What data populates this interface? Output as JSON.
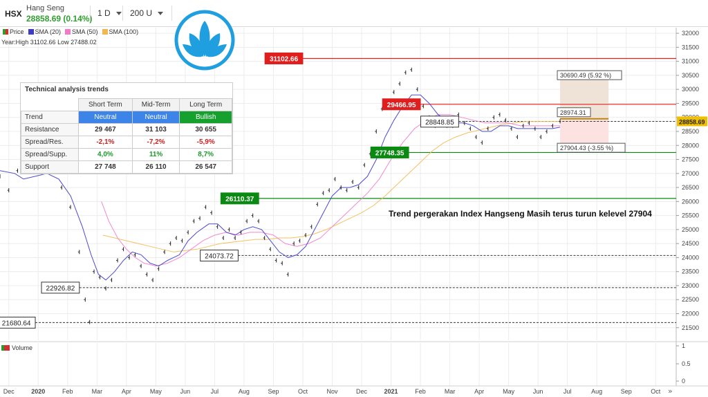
{
  "header": {
    "symbol": "HSX",
    "name": "Hang Seng",
    "price": "28858.69 (0.14%)",
    "interval": "1 D",
    "bars": "200 U"
  },
  "legend": {
    "items": [
      {
        "label": "Price",
        "color": "#2e9e2e"
      },
      {
        "label": "SMA (20)",
        "color": "#3c3cc8"
      },
      {
        "label": "SMA (50)",
        "color": "#f07ac8"
      },
      {
        "label": "SMA (100)",
        "color": "#f0b850"
      }
    ],
    "year_info": "Year:High 31102.66 Low 27488.02"
  },
  "technical_table": {
    "title": "Technical analysis trends",
    "columns": [
      "Short Term",
      "Mid-Term",
      "Long Term"
    ],
    "rows": [
      {
        "label": "Trend",
        "values": [
          "Neutral",
          "Neutral",
          "Bullish"
        ]
      },
      {
        "label": "Resistance",
        "values": [
          "29 467",
          "31 103",
          "30 655"
        ]
      },
      {
        "label": "Spread/Res.",
        "values": [
          "-2,1%",
          "-7,2%",
          "-5,9%"
        ]
      },
      {
        "label": "Spread/Supp.",
        "values": [
          "4,0%",
          "11%",
          "8,7%"
        ]
      },
      {
        "label": "Support",
        "values": [
          "27 748",
          "26 110",
          "26 547"
        ]
      }
    ]
  },
  "volume": {
    "label": "Volume",
    "ticks": [
      "1",
      "0.5",
      "0"
    ]
  },
  "annotation": "Trend pergerakan Index Hangseng Masih terus turun kelevel 27904",
  "colors": {
    "price_tag": "#f0c000",
    "resistance": "#e02020",
    "support": "#0a8a10",
    "sma20": "#4a4ad0",
    "sma50": "#f088d0",
    "sma100": "#f5c060",
    "projection_up": "#efe2d6",
    "projection_down": "#fde2e2"
  },
  "chart_data": {
    "type": "line",
    "y_ticks": [
      32000,
      31500,
      31000,
      30500,
      30000,
      29500,
      29000,
      28500,
      28000,
      27500,
      27000,
      26500,
      26000,
      25500,
      25000,
      24500,
      24000,
      23500,
      23000,
      22500,
      22000,
      21500
    ],
    "ylim": [
      21050,
      32200
    ],
    "x_ticks": [
      "Dec",
      "2020",
      "Feb",
      "Mar",
      "Apr",
      "May",
      "Jun",
      "Jul",
      "Aug",
      "Sep",
      "Oct",
      "Nov",
      "Dec",
      "2021",
      "Feb",
      "Mar",
      "Apr",
      "May",
      "Jun",
      "Jul",
      "Aug",
      "Sep",
      "Oct"
    ],
    "x_tick_months": [
      0,
      1,
      2,
      3,
      4,
      5,
      6,
      7,
      8,
      9,
      10,
      11,
      12,
      13,
      14,
      15,
      16,
      17,
      18,
      19,
      20,
      21,
      22
    ],
    "xlim": [
      -0.3,
      22.7
    ],
    "current_price": {
      "label": "28858.69",
      "value": 28858.69
    },
    "horizontal_levels": [
      {
        "label": "31102.66",
        "value": 31102.66,
        "style": "red-box",
        "month": 10.0
      },
      {
        "label": "29466.95",
        "value": 29466.95,
        "style": "red-box",
        "month": 14.0
      },
      {
        "label": "27748.35",
        "value": 27748.35,
        "style": "green-box",
        "month": 13.6
      },
      {
        "label": "26110.37",
        "value": 26110.37,
        "style": "green-box",
        "month": 8.5
      },
      {
        "label": "24073.72",
        "value": 24073.72,
        "style": "white-box",
        "month": 7.8
      },
      {
        "label": "22926.82",
        "value": 22926.82,
        "style": "white-box",
        "month": 2.4
      },
      {
        "label": "21680.64",
        "value": 21680.64,
        "style": "white-box",
        "month": 0.9
      }
    ],
    "level_28848": {
      "label": "28848.85",
      "value": 28848.85,
      "month": 15.3
    },
    "projection": {
      "upper": {
        "label": "30690.49 (5.92 %)",
        "value": 30690.49
      },
      "mid": {
        "label": "28974.31",
        "value": 28974.31
      },
      "lower": {
        "label": "27904.43 (-3.55 %)",
        "value": 27904.43
      },
      "start_month": 18.75,
      "end_month": 20.4
    },
    "price_points": [
      [
        -0.3,
        26900
      ],
      [
        0.0,
        26400
      ],
      [
        0.3,
        27100
      ],
      [
        0.6,
        27500
      ],
      [
        0.9,
        27600
      ],
      [
        1.2,
        27700
      ],
      [
        1.5,
        27300
      ],
      [
        1.8,
        26500
      ],
      [
        2.1,
        25800
      ],
      [
        2.4,
        24200
      ],
      [
        2.6,
        22500
      ],
      [
        2.75,
        21700
      ],
      [
        2.9,
        23500
      ],
      [
        3.1,
        23300
      ],
      [
        3.3,
        22900
      ],
      [
        3.5,
        23200
      ],
      [
        3.7,
        23900
      ],
      [
        3.9,
        24300
      ],
      [
        4.1,
        24000
      ],
      [
        4.3,
        24100
      ],
      [
        4.5,
        23700
      ],
      [
        4.7,
        23400
      ],
      [
        4.9,
        23200
      ],
      [
        5.1,
        23600
      ],
      [
        5.3,
        24200
      ],
      [
        5.5,
        24500
      ],
      [
        5.7,
        24700
      ],
      [
        5.9,
        24600
      ],
      [
        6.1,
        24900
      ],
      [
        6.3,
        25300
      ],
      [
        6.5,
        25400
      ],
      [
        6.7,
        25800
      ],
      [
        6.9,
        25600
      ],
      [
        7.1,
        25100
      ],
      [
        7.3,
        24700
      ],
      [
        7.5,
        25000
      ],
      [
        7.7,
        24700
      ],
      [
        7.9,
        24900
      ],
      [
        8.1,
        25300
      ],
      [
        8.3,
        25500
      ],
      [
        8.5,
        25300
      ],
      [
        8.7,
        24700
      ],
      [
        8.9,
        24300
      ],
      [
        9.1,
        23900
      ],
      [
        9.3,
        23800
      ],
      [
        9.5,
        23400
      ],
      [
        9.7,
        24500
      ],
      [
        9.9,
        24600
      ],
      [
        10.1,
        24800
      ],
      [
        10.3,
        25100
      ],
      [
        10.5,
        25900
      ],
      [
        10.7,
        26300
      ],
      [
        10.9,
        26400
      ],
      [
        11.1,
        26800
      ],
      [
        11.3,
        26500
      ],
      [
        11.5,
        26400
      ],
      [
        11.7,
        26700
      ],
      [
        11.9,
        26500
      ],
      [
        12.1,
        27300
      ],
      [
        12.3,
        27700
      ],
      [
        12.5,
        28500
      ],
      [
        12.7,
        29300
      ],
      [
        12.9,
        29500
      ],
      [
        13.1,
        29900
      ],
      [
        13.3,
        30200
      ],
      [
        13.5,
        30600
      ],
      [
        13.7,
        30700
      ],
      [
        13.9,
        30000
      ],
      [
        14.1,
        29400
      ],
      [
        14.3,
        29000
      ],
      [
        14.5,
        28700
      ],
      [
        14.7,
        28900
      ],
      [
        14.9,
        28700
      ],
      [
        15.1,
        28700
      ],
      [
        15.3,
        29100
      ],
      [
        15.5,
        28800
      ],
      [
        15.7,
        28600
      ],
      [
        15.9,
        28300
      ],
      [
        16.1,
        28100
      ],
      [
        16.3,
        28600
      ],
      [
        16.5,
        29000
      ],
      [
        16.7,
        29100
      ],
      [
        16.9,
        28900
      ],
      [
        17.1,
        28600
      ],
      [
        17.3,
        28300
      ],
      [
        17.5,
        28700
      ],
      [
        17.7,
        28800
      ],
      [
        17.9,
        28600
      ],
      [
        18.1,
        28300
      ],
      [
        18.3,
        28500
      ],
      [
        18.5,
        28700
      ],
      [
        18.75,
        28860
      ]
    ],
    "sma20_points": [
      [
        -0.3,
        27100
      ],
      [
        0.2,
        27000
      ],
      [
        0.5,
        26800
      ],
      [
        0.9,
        26900
      ],
      [
        1.3,
        27000
      ],
      [
        1.7,
        26800
      ],
      [
        2.1,
        26200
      ],
      [
        2.5,
        25100
      ],
      [
        2.8,
        24100
      ],
      [
        3.05,
        23400
      ],
      [
        3.3,
        23200
      ],
      [
        3.6,
        23500
      ],
      [
        3.9,
        23900
      ],
      [
        4.2,
        24200
      ],
      [
        4.5,
        24100
      ],
      [
        4.8,
        23800
      ],
      [
        5.1,
        23700
      ],
      [
        5.4,
        23900
      ],
      [
        5.8,
        24100
      ],
      [
        6.1,
        24600
      ],
      [
        6.4,
        24900
      ],
      [
        6.8,
        25200
      ],
      [
        7.1,
        25200
      ],
      [
        7.4,
        24900
      ],
      [
        7.7,
        24800
      ],
      [
        8.0,
        25000
      ],
      [
        8.3,
        25100
      ],
      [
        8.6,
        25000
      ],
      [
        8.9,
        24600
      ],
      [
        9.2,
        24200
      ],
      [
        9.5,
        24000
      ],
      [
        9.8,
        24100
      ],
      [
        10.1,
        24400
      ],
      [
        10.4,
        25000
      ],
      [
        10.7,
        25600
      ],
      [
        11.0,
        26200
      ],
      [
        11.3,
        26500
      ],
      [
        11.6,
        26500
      ],
      [
        11.9,
        26600
      ],
      [
        12.2,
        26900
      ],
      [
        12.5,
        27500
      ],
      [
        12.8,
        28300
      ],
      [
        13.1,
        28900
      ],
      [
        13.4,
        29400
      ],
      [
        13.7,
        29800
      ],
      [
        14.0,
        29800
      ],
      [
        14.3,
        29500
      ],
      [
        14.6,
        29100
      ],
      [
        14.9,
        28900
      ],
      [
        15.2,
        28800
      ],
      [
        15.5,
        28800
      ],
      [
        15.8,
        28700
      ],
      [
        16.1,
        28500
      ],
      [
        16.4,
        28500
      ],
      [
        16.7,
        28700
      ],
      [
        17.0,
        28700
      ],
      [
        17.3,
        28600
      ],
      [
        17.6,
        28600
      ],
      [
        17.9,
        28600
      ],
      [
        18.2,
        28600
      ],
      [
        18.5,
        28600
      ],
      [
        18.75,
        28650
      ]
    ],
    "sma50_points": [
      [
        3.15,
        26000
      ],
      [
        3.4,
        25300
      ],
      [
        3.7,
        24700
      ],
      [
        4.0,
        24300
      ],
      [
        4.3,
        24000
      ],
      [
        4.6,
        23800
      ],
      [
        5.0,
        23700
      ],
      [
        5.4,
        23800
      ],
      [
        5.8,
        24000
      ],
      [
        6.2,
        24300
      ],
      [
        6.6,
        24600
      ],
      [
        7.0,
        24800
      ],
      [
        7.4,
        24900
      ],
      [
        7.8,
        24800
      ],
      [
        8.2,
        24900
      ],
      [
        8.6,
        24900
      ],
      [
        9.0,
        24800
      ],
      [
        9.4,
        24500
      ],
      [
        9.8,
        24400
      ],
      [
        10.2,
        24500
      ],
      [
        10.6,
        24700
      ],
      [
        11.0,
        25100
      ],
      [
        11.4,
        25500
      ],
      [
        11.8,
        25900
      ],
      [
        12.2,
        26300
      ],
      [
        12.6,
        26800
      ],
      [
        13.0,
        27500
      ],
      [
        13.4,
        28100
      ],
      [
        13.8,
        28600
      ],
      [
        14.2,
        28900
      ],
      [
        14.6,
        29100
      ],
      [
        15.0,
        29100
      ],
      [
        15.4,
        29000
      ],
      [
        15.8,
        28900
      ],
      [
        16.2,
        28800
      ],
      [
        16.6,
        28800
      ],
      [
        17.0,
        28800
      ],
      [
        17.4,
        28700
      ],
      [
        17.8,
        28700
      ],
      [
        18.2,
        28700
      ],
      [
        18.75,
        28700
      ]
    ],
    "sma100_points": [
      [
        3.2,
        24800
      ],
      [
        3.6,
        24700
      ],
      [
        4.0,
        24600
      ],
      [
        4.4,
        24500
      ],
      [
        4.8,
        24400
      ],
      [
        5.2,
        24300
      ],
      [
        5.6,
        24200
      ],
      [
        6.0,
        24250
      ],
      [
        6.4,
        24300
      ],
      [
        6.8,
        24400
      ],
      [
        7.2,
        24500
      ],
      [
        7.6,
        24550
      ],
      [
        8.0,
        24600
      ],
      [
        8.4,
        24650
      ],
      [
        8.8,
        24650
      ],
      [
        9.2,
        24700
      ],
      [
        9.6,
        24700
      ],
      [
        10.0,
        24750
      ],
      [
        10.4,
        24850
      ],
      [
        10.8,
        25000
      ],
      [
        11.2,
        25200
      ],
      [
        11.6,
        25400
      ],
      [
        12.0,
        25600
      ],
      [
        12.4,
        25850
      ],
      [
        12.8,
        26200
      ],
      [
        13.2,
        26600
      ],
      [
        13.6,
        27000
      ],
      [
        14.0,
        27400
      ],
      [
        14.4,
        27800
      ],
      [
        14.8,
        28100
      ],
      [
        15.2,
        28300
      ],
      [
        15.6,
        28450
      ],
      [
        16.0,
        28550
      ],
      [
        16.4,
        28650
      ],
      [
        16.8,
        28750
      ],
      [
        17.2,
        28800
      ],
      [
        17.6,
        28850
      ],
      [
        18.0,
        28850
      ],
      [
        18.4,
        28850
      ],
      [
        18.75,
        28850
      ]
    ]
  }
}
